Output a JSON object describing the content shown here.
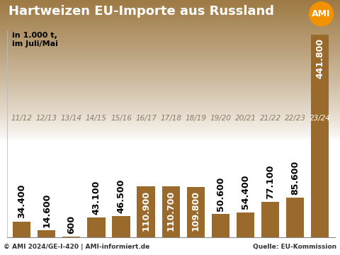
{
  "chart_data": {
    "type": "bar",
    "title": "Hartweizen EU-Importe aus Russland",
    "subtitle": "in 1.000 t,\nim Juli/Mai",
    "logo": "AMI",
    "footer": "© AMI 2024/GE-I-420 | AMI-informiert.de",
    "source": "Quelle: EU-Kommission",
    "categories": [
      "11/12",
      "12/13",
      "13/14",
      "14/15",
      "15/16",
      "16/17",
      "17/18",
      "18/19",
      "19/20",
      "20/21",
      "21/22",
      "22/23",
      "23/24"
    ],
    "values": [
      34400,
      14600,
      600,
      43100,
      46500,
      110900,
      110700,
      109800,
      50600,
      54400,
      77100,
      85600,
      441800
    ],
    "value_labels": [
      "34.400",
      "14.600",
      "600",
      "43.100",
      "46.500",
      "110.900",
      "110.700",
      "109.800",
      "50.600",
      "54.400",
      "77.100",
      "85.600",
      "441.800"
    ],
    "color": "#9a6a2c",
    "ylim": [
      0,
      450000
    ],
    "data_labels": true
  }
}
